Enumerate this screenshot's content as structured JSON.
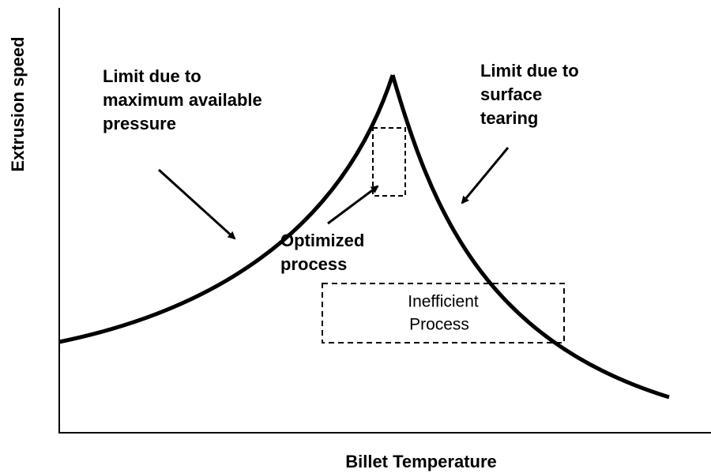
{
  "x_axis_label": "Billet Temperature",
  "y_axis_label": "Extrusion speed",
  "annotations": {
    "pressure_limit": [
      "Limit due to",
      "maximum available",
      "pressure"
    ],
    "tearing_limit": [
      "Limit due to",
      "surface",
      "tearing"
    ],
    "optimized": [
      "Optimized",
      "process"
    ],
    "inefficient": [
      "Inefficient",
      "Process"
    ]
  }
}
